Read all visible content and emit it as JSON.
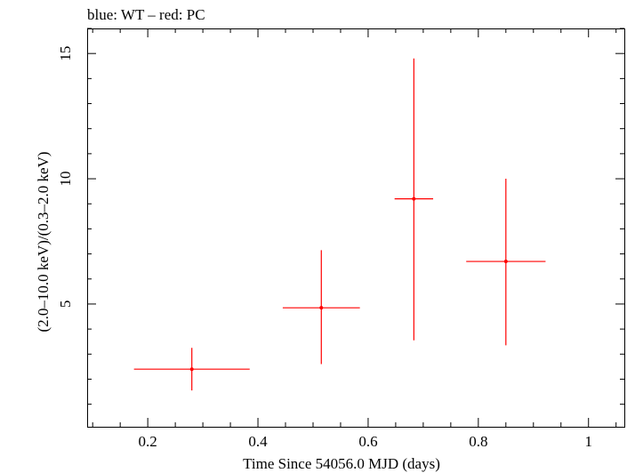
{
  "chart_data": {
    "type": "scatter",
    "title": "blue: WT – red: PC",
    "xlabel": "Time Since 54056.0 MJD (days)",
    "ylabel": "(2.0–10.0 keV)/(0.3–2.0 keV)",
    "xlim": [
      0.09,
      1.065
    ],
    "ylim": [
      0.1,
      16.0
    ],
    "x_ticks": [
      0.2,
      0.4,
      0.6,
      0.8,
      1.0
    ],
    "x_tick_labels": [
      "0.2",
      "0.4",
      "0.6",
      "0.8",
      "1"
    ],
    "y_ticks": [
      5,
      10,
      15
    ],
    "y_tick_labels": [
      "5",
      "10",
      "15"
    ],
    "grid": false,
    "series": [
      {
        "name": "PC",
        "color": "#ff0000",
        "points": [
          {
            "x": 0.28,
            "y": 2.4,
            "xerr_low": 0.105,
            "xerr_high": 0.105,
            "yerr_low": 0.85,
            "yerr_high": 0.85
          },
          {
            "x": 0.515,
            "y": 4.85,
            "xerr_low": 0.07,
            "xerr_high": 0.07,
            "yerr_low": 2.25,
            "yerr_high": 2.3
          },
          {
            "x": 0.683,
            "y": 9.2,
            "xerr_low": 0.035,
            "xerr_high": 0.035,
            "yerr_low": 5.65,
            "yerr_high": 5.6
          },
          {
            "x": 0.85,
            "y": 6.7,
            "xerr_low": 0.072,
            "xerr_high": 0.072,
            "yerr_low": 3.35,
            "yerr_high": 3.3
          }
        ]
      },
      {
        "name": "WT",
        "color": "#0000ff",
        "points": []
      }
    ]
  }
}
